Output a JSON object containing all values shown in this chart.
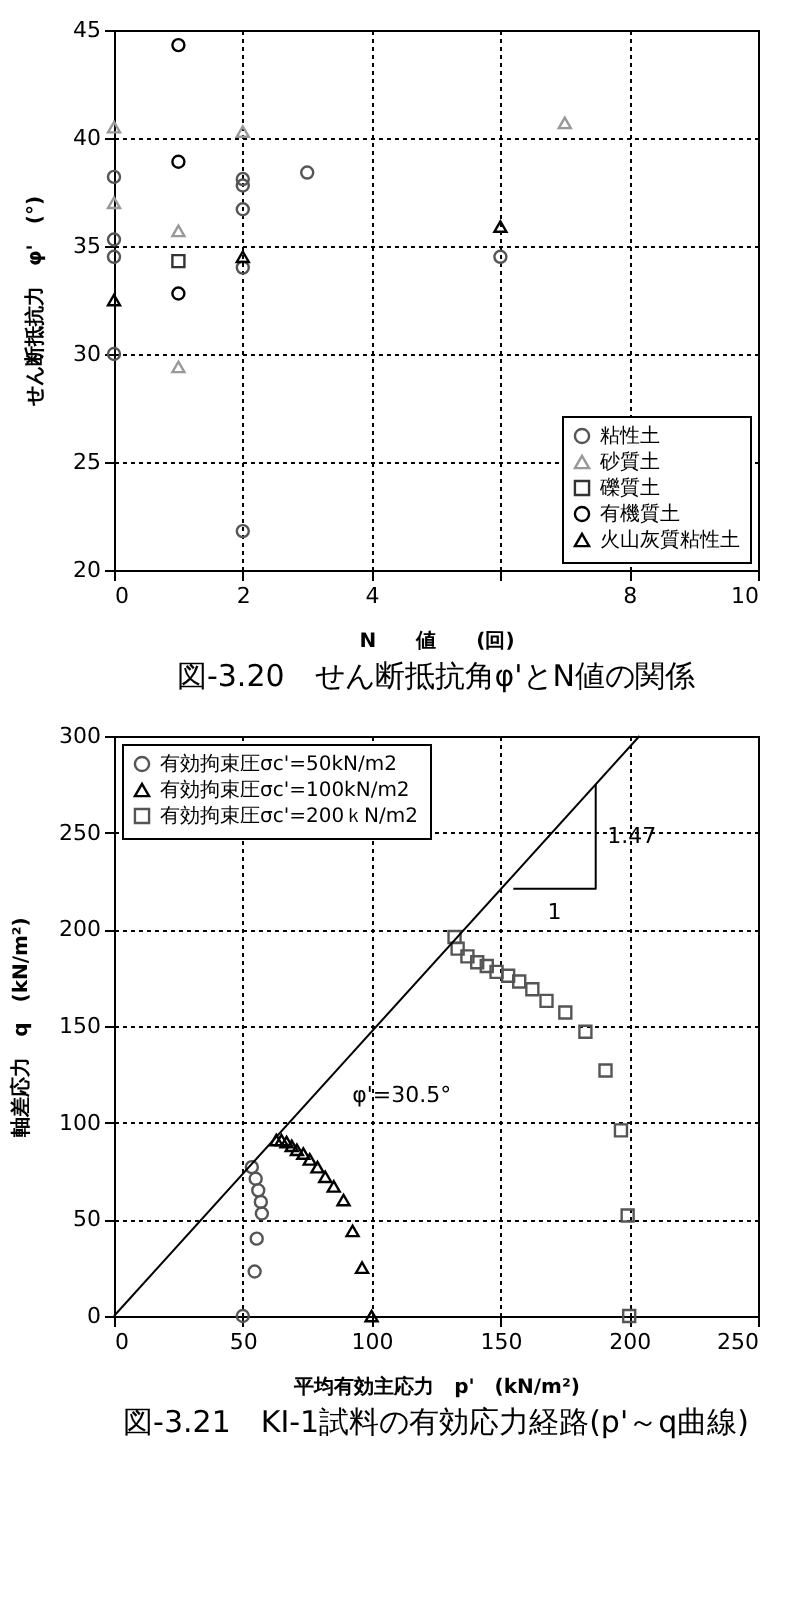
{
  "chart_data": [
    {
      "type": "scatter",
      "title": "図-3.20　せん断抵抗角φ'とN値の関係",
      "xlabel": "N　　値　　(回)",
      "ylabel": "せん断抵抗力　φ'　(°)",
      "xlim": [
        0,
        10
      ],
      "ylim": [
        20,
        45
      ],
      "xticks": [
        0,
        2,
        4,
        {
          "value": 6,
          "label": null
        },
        8,
        10
      ],
      "yticks": [
        20,
        25,
        30,
        35,
        40,
        45
      ],
      "grid": true,
      "legend": "bottom right",
      "series": [
        {
          "name": "粘性土",
          "color": "#555555",
          "marker": "circle",
          "x": [
            0,
            0,
            0,
            0,
            2,
            2,
            2,
            2,
            3,
            6,
            2
          ],
          "values": [
            38.2,
            35.3,
            34.5,
            30.0,
            38.1,
            37.8,
            36.7,
            34.0,
            38.4,
            34.5,
            21.8
          ]
        },
        {
          "name": "砂質土",
          "color": "#999999",
          "marker": "triangle",
          "x": [
            0,
            0,
            1,
            2,
            7,
            1
          ],
          "values": [
            40.5,
            37.0,
            35.7,
            40.3,
            40.7,
            29.4
          ]
        },
        {
          "name": "礫質土",
          "color": "#333333",
          "marker": "square",
          "x": [
            1
          ],
          "values": [
            34.3
          ]
        },
        {
          "name": "有機質土",
          "color": "#000000",
          "marker": "circle",
          "x": [
            1,
            1,
            1
          ],
          "values": [
            44.3,
            38.9,
            32.8
          ]
        },
        {
          "name": "火山灰質粘性土",
          "color": "#000000",
          "marker": "triangle",
          "x": [
            0,
            2,
            6
          ],
          "values": [
            32.5,
            34.5,
            35.9
          ]
        }
      ]
    },
    {
      "type": "scatter",
      "title": "図-3.21　KI-1試料の有効応力経路(p'～q曲線)",
      "xlabel": "平均有効主応力　p'　(kN/m²)",
      "ylabel": "軸差応力　q　(kN/m²)",
      "xlim": [
        0,
        250
      ],
      "ylim": [
        0,
        300
      ],
      "xticks": [
        0,
        50,
        100,
        150,
        200,
        250
      ],
      "yticks": [
        0,
        50,
        100,
        150,
        200,
        250,
        300
      ],
      "grid": true,
      "legend": "top left",
      "annotations": [
        "1",
        "1.47"
      ],
      "series": [
        {
          "name": "有効拘束圧σc'=50kN/m2",
          "color": "#555555",
          "marker": "circle",
          "x": [
            50,
            54.6,
            55.4,
            57.4,
            57,
            56,
            55,
            53.5
          ],
          "values": [
            0,
            23,
            40,
            53,
            59,
            65,
            71,
            77
          ]
        },
        {
          "name": "有効拘束圧σc'=100kN/m2",
          "color": "#000000",
          "marker": "triangle",
          "x": [
            100,
            96.3,
            92.6,
            89.1,
            85.3,
            82,
            79,
            76,
            73.5,
            71,
            69,
            67,
            65,
            63
          ],
          "values": [
            0,
            25,
            44,
            60,
            67,
            72,
            77,
            81,
            84,
            86,
            88,
            90,
            91,
            91
          ]
        },
        {
          "name": "有効拘束圧σc'=200ｋN/m2",
          "color": "#555555",
          "marker": "square",
          "x": [
            200,
            199.4,
            196.8,
            190.8,
            183,
            175.2,
            167.9,
            162.4,
            157.3,
            153,
            148.5,
            144.7,
            141,
            137.2,
            133.4,
            132.2
          ],
          "values": [
            0,
            52,
            96,
            127,
            147,
            157,
            163,
            169,
            173,
            176,
            178,
            181,
            183,
            186,
            190,
            196
          ]
        },
        {
          "type": "line",
          "name": "φ'=30.5°",
          "color": "#000000",
          "line_style": "solid",
          "x": [
            0,
            204
          ],
          "values": [
            0,
            300
          ]
        },
        {
          "type": "line",
          "color": "#000000",
          "line_style": "solid",
          "x": [
            155,
            187,
            187
          ],
          "values": [
            221,
            221,
            275
          ]
        }
      ]
    }
  ]
}
